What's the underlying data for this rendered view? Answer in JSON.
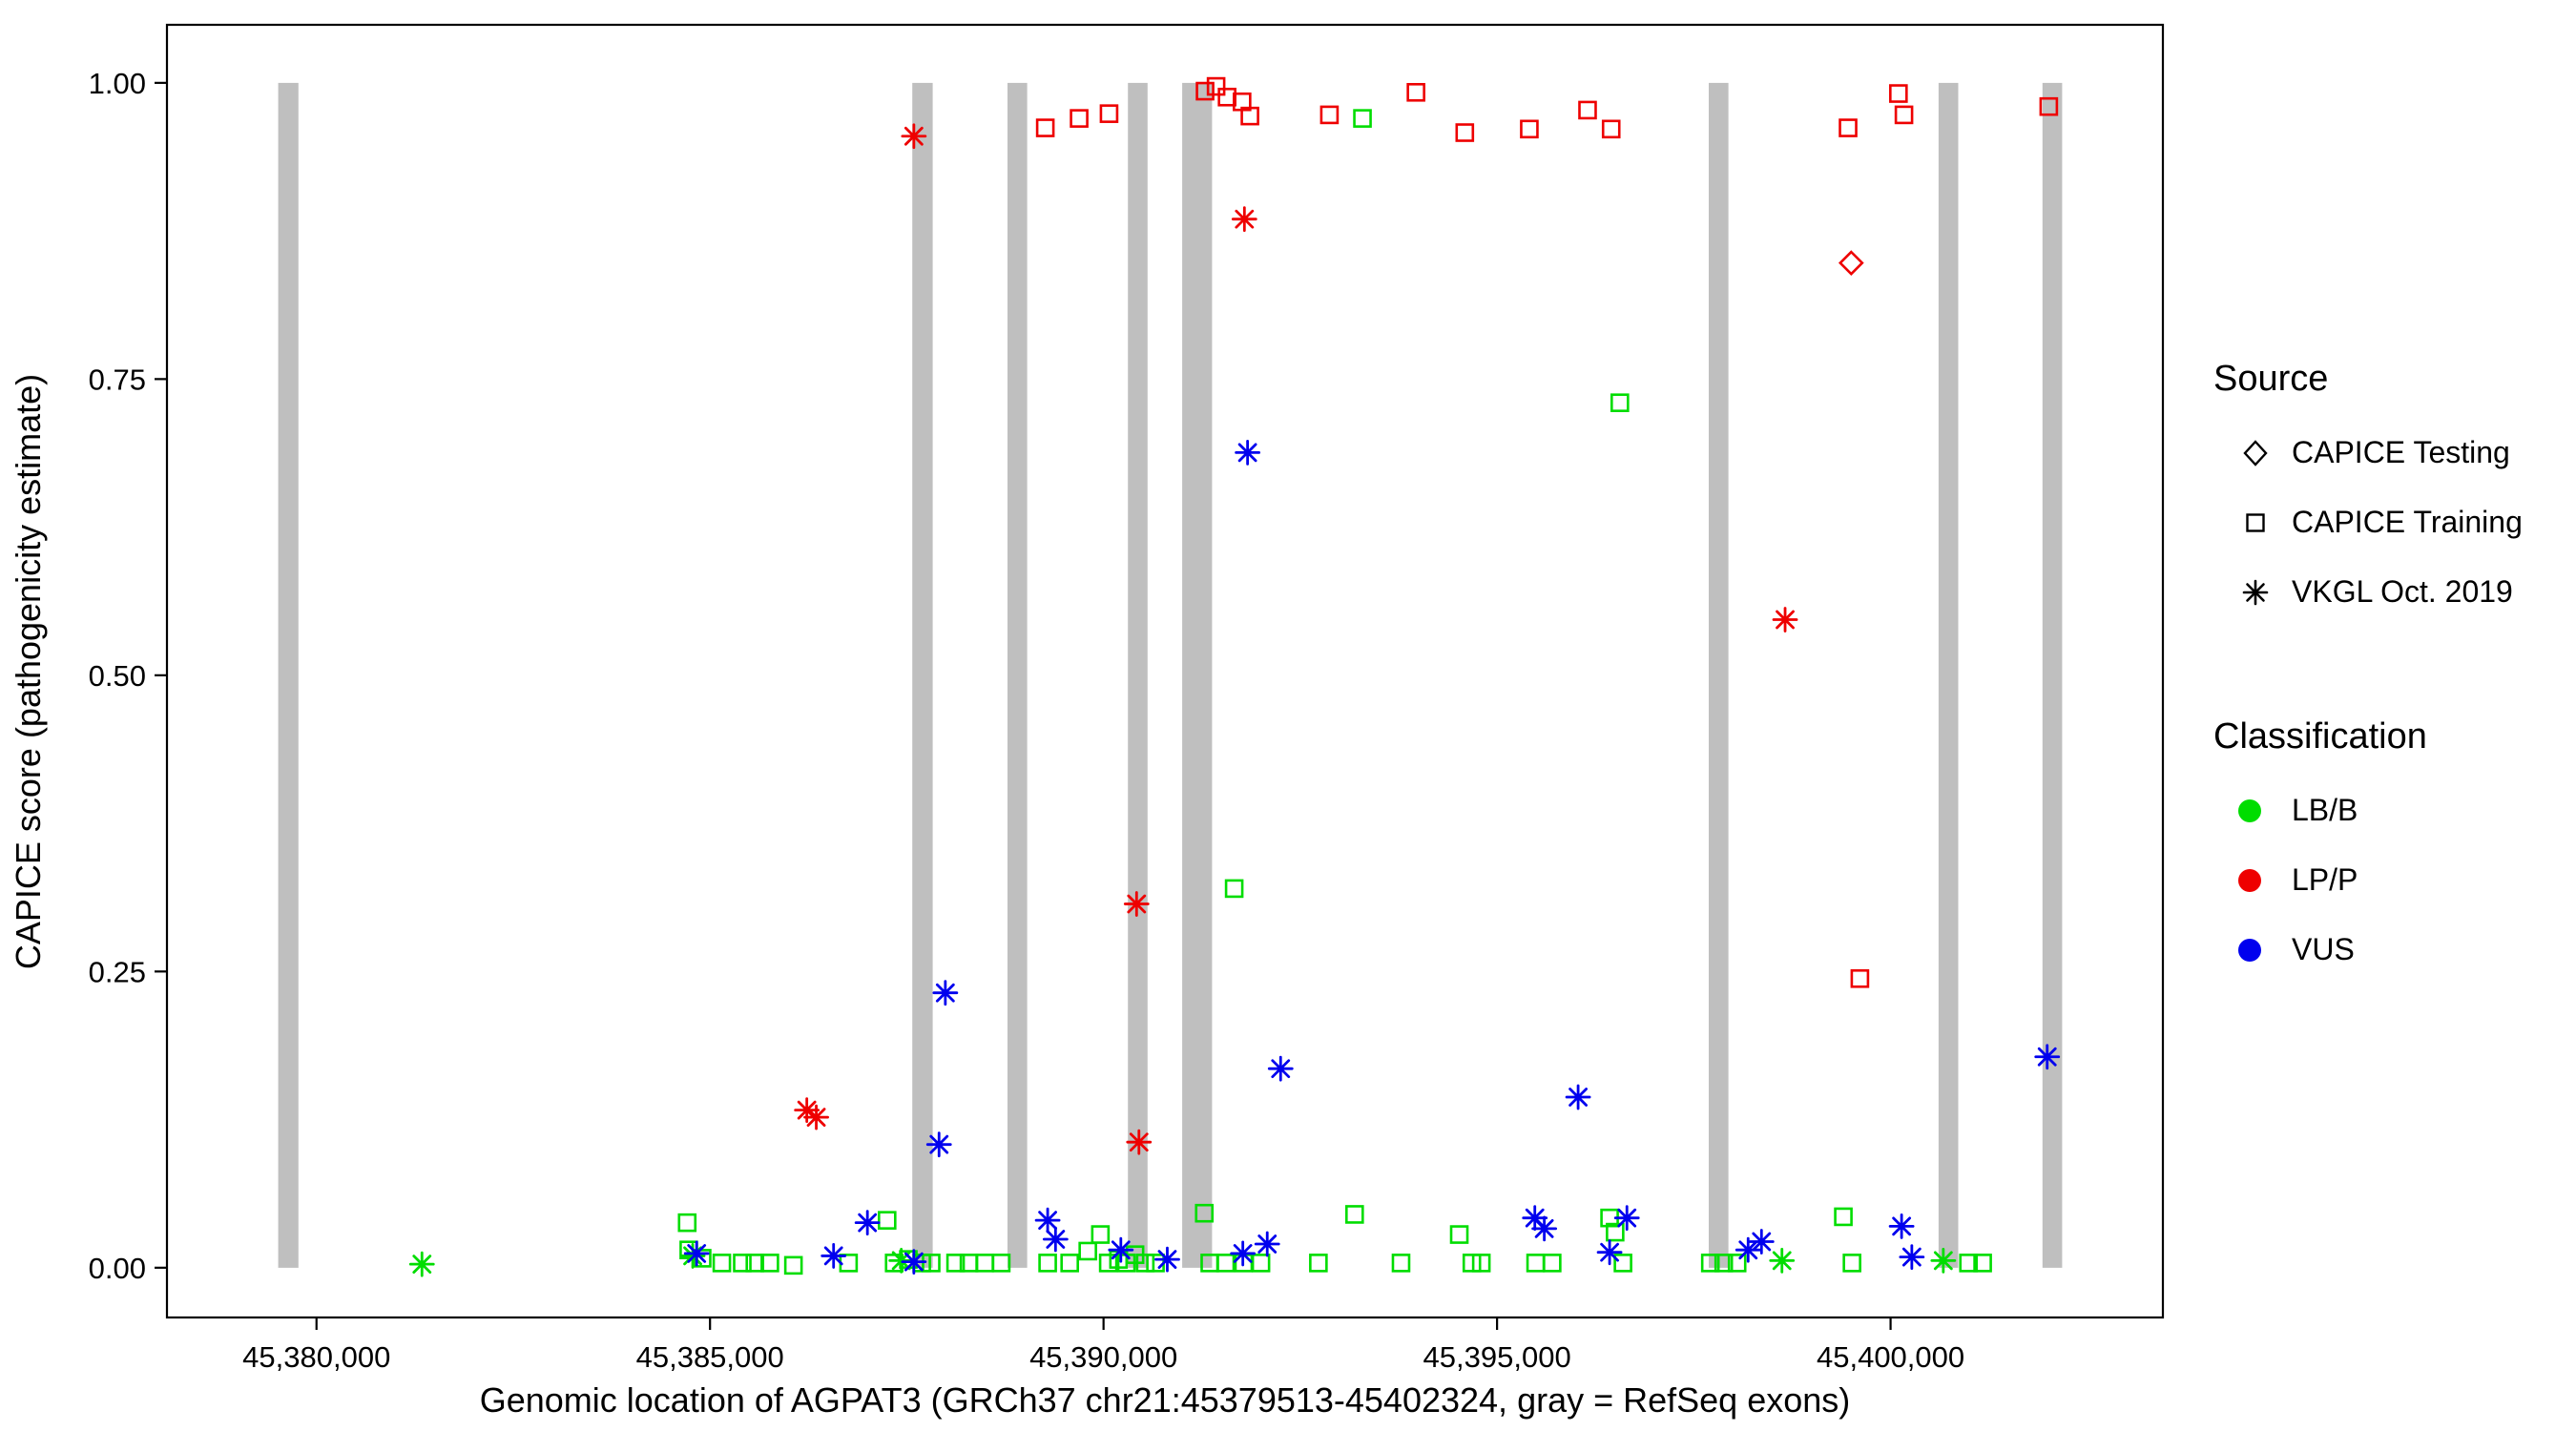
{
  "figure": {
    "x_axis_title": "Genomic location of AGPAT3 (GRCh37 chr21:45379513-45402324, gray = RefSeq exons)",
    "y_axis_title": "CAPICE score (pathogenicity estimate)"
  },
  "legend": {
    "source": {
      "title": "Source",
      "items": [
        {
          "label": "CAPICE Testing",
          "marker": "diamond"
        },
        {
          "label": "CAPICE Training",
          "marker": "square"
        },
        {
          "label": "VKGL Oct. 2019",
          "marker": "asterisk"
        }
      ]
    },
    "classification": {
      "title": "Classification",
      "items": [
        {
          "label": "LB/B",
          "color": "#00dd00"
        },
        {
          "label": "LP/P",
          "color": "#ee0000"
        },
        {
          "label": "VUS",
          "color": "#0000ee"
        }
      ]
    }
  },
  "chart_data": {
    "type": "scatter",
    "title": "",
    "xlabel": "Genomic location of AGPAT3 (GRCh37 chr21:45379513-45402324, gray = RefSeq exons)",
    "ylabel": "CAPICE score (pathogenicity estimate)",
    "legend_position": "right",
    "grid": false,
    "xlim": [
      45378100,
      45403460
    ],
    "ylim": [
      -0.042,
      1.049
    ],
    "x_ticks": [
      {
        "value": 45380000,
        "label": "45,380,000"
      },
      {
        "value": 45385000,
        "label": "45,385,000"
      },
      {
        "value": 45390000,
        "label": "45,390,000"
      },
      {
        "value": 45395000,
        "label": "45,395,000"
      },
      {
        "value": 45400000,
        "label": "45,400,000"
      }
    ],
    "y_ticks": [
      {
        "value": 0.0,
        "label": "0.00"
      },
      {
        "value": 0.25,
        "label": "0.25"
      },
      {
        "value": 0.5,
        "label": "0.50"
      },
      {
        "value": 0.75,
        "label": "0.75"
      },
      {
        "value": 1.0,
        "label": "1.00"
      }
    ],
    "exon_color": "#bfbfbf",
    "colors": {
      "LB/B": "#00dd00",
      "LP/P": "#ee0000",
      "VUS": "#0000ee"
    },
    "marker_by_source": {
      "testing": "diamond",
      "training": "square",
      "vkgl": "asterisk"
    },
    "exons": [
      [
        45379513,
        45379770
      ],
      [
        45387570,
        45387830
      ],
      [
        45388780,
        45389030
      ],
      [
        45390310,
        45390560
      ],
      [
        45391000,
        45391380
      ],
      [
        45397690,
        45397940
      ],
      [
        45400610,
        45400860
      ],
      [
        45401930,
        45402180
      ]
    ],
    "point_format": [
      "genomic_position",
      "capice_score",
      "source",
      "classification"
    ],
    "points": [
      [
        45389260,
        0.962,
        "training",
        "LP/P"
      ],
      [
        45389690,
        0.97,
        "training",
        "LP/P"
      ],
      [
        45390070,
        0.974,
        "training",
        "LP/P"
      ],
      [
        45391290,
        0.993,
        "training",
        "LP/P"
      ],
      [
        45391430,
        0.997,
        "training",
        "LP/P"
      ],
      [
        45391570,
        0.988,
        "training",
        "LP/P"
      ],
      [
        45391760,
        0.984,
        "training",
        "LP/P"
      ],
      [
        45391860,
        0.972,
        "training",
        "LP/P"
      ],
      [
        45392870,
        0.973,
        "training",
        "LP/P"
      ],
      [
        45393970,
        0.992,
        "training",
        "LP/P"
      ],
      [
        45394590,
        0.958,
        "training",
        "LP/P"
      ],
      [
        45395410,
        0.961,
        "training",
        "LP/P"
      ],
      [
        45396150,
        0.977,
        "training",
        "LP/P"
      ],
      [
        45396450,
        0.961,
        "training",
        "LP/P"
      ],
      [
        45399460,
        0.962,
        "training",
        "LP/P"
      ],
      [
        45399610,
        0.244,
        "training",
        "LP/P"
      ],
      [
        45400100,
        0.991,
        "training",
        "LP/P"
      ],
      [
        45400170,
        0.973,
        "training",
        "LP/P"
      ],
      [
        45402010,
        0.98,
        "training",
        "LP/P"
      ],
      [
        45399500,
        0.848,
        "testing",
        "LP/P"
      ],
      [
        45387590,
        0.955,
        "vkgl",
        "LP/P"
      ],
      [
        45391790,
        0.885,
        "vkgl",
        "LP/P"
      ],
      [
        45386230,
        0.133,
        "vkgl",
        "LP/P"
      ],
      [
        45386350,
        0.127,
        "vkgl",
        "LP/P"
      ],
      [
        45390420,
        0.307,
        "vkgl",
        "LP/P"
      ],
      [
        45390450,
        0.106,
        "vkgl",
        "LP/P"
      ],
      [
        45398660,
        0.547,
        "vkgl",
        "LP/P"
      ],
      [
        45393290,
        0.97,
        "training",
        "LB/B"
      ],
      [
        45396560,
        0.73,
        "training",
        "LB/B"
      ],
      [
        45391660,
        0.32,
        "training",
        "LB/B"
      ],
      [
        45391280,
        0.046,
        "training",
        "LB/B"
      ],
      [
        45393190,
        0.045,
        "training",
        "LB/B"
      ],
      [
        45384710,
        0.038,
        "training",
        "LB/B"
      ],
      [
        45387250,
        0.04,
        "training",
        "LB/B"
      ],
      [
        45389960,
        0.028,
        "training",
        "LB/B"
      ],
      [
        45394520,
        0.028,
        "training",
        "LB/B"
      ],
      [
        45396430,
        0.042,
        "training",
        "LB/B"
      ],
      [
        45396500,
        0.03,
        "training",
        "LB/B"
      ],
      [
        45399400,
        0.043,
        "training",
        "LB/B"
      ],
      [
        45384730,
        0.015,
        "training",
        "LB/B"
      ],
      [
        45384900,
        0.008,
        "training",
        "LB/B"
      ],
      [
        45385150,
        0.004,
        "training",
        "LB/B"
      ],
      [
        45385410,
        0.004,
        "training",
        "LB/B"
      ],
      [
        45385570,
        0.004,
        "training",
        "LB/B"
      ],
      [
        45385760,
        0.004,
        "training",
        "LB/B"
      ],
      [
        45386060,
        0.002,
        "training",
        "LB/B"
      ],
      [
        45386760,
        0.004,
        "training",
        "LB/B"
      ],
      [
        45387340,
        0.004,
        "training",
        "LB/B"
      ],
      [
        45387520,
        0.007,
        "training",
        "LB/B"
      ],
      [
        45387690,
        0.004,
        "training",
        "LB/B"
      ],
      [
        45387810,
        0.004,
        "training",
        "LB/B"
      ],
      [
        45388120,
        0.004,
        "training",
        "LB/B"
      ],
      [
        45388290,
        0.004,
        "training",
        "LB/B"
      ],
      [
        45388490,
        0.004,
        "training",
        "LB/B"
      ],
      [
        45388700,
        0.004,
        "training",
        "LB/B"
      ],
      [
        45389290,
        0.004,
        "training",
        "LB/B"
      ],
      [
        45389570,
        0.004,
        "training",
        "LB/B"
      ],
      [
        45389800,
        0.014,
        "training",
        "LB/B"
      ],
      [
        45390060,
        0.004,
        "training",
        "LB/B"
      ],
      [
        45390190,
        0.007,
        "training",
        "LB/B"
      ],
      [
        45390290,
        0.004,
        "training",
        "LB/B"
      ],
      [
        45390400,
        0.011,
        "training",
        "LB/B"
      ],
      [
        45390530,
        0.004,
        "training",
        "LB/B"
      ],
      [
        45390660,
        0.004,
        "training",
        "LB/B"
      ],
      [
        45391350,
        0.004,
        "training",
        "LB/B"
      ],
      [
        45391550,
        0.004,
        "training",
        "LB/B"
      ],
      [
        45391780,
        0.004,
        "training",
        "LB/B"
      ],
      [
        45392000,
        0.004,
        "training",
        "LB/B"
      ],
      [
        45392730,
        0.004,
        "training",
        "LB/B"
      ],
      [
        45393780,
        0.004,
        "training",
        "LB/B"
      ],
      [
        45394680,
        0.004,
        "training",
        "LB/B"
      ],
      [
        45394800,
        0.004,
        "training",
        "LB/B"
      ],
      [
        45395490,
        0.004,
        "training",
        "LB/B"
      ],
      [
        45395700,
        0.004,
        "training",
        "LB/B"
      ],
      [
        45396600,
        0.004,
        "training",
        "LB/B"
      ],
      [
        45397710,
        0.004,
        "training",
        "LB/B"
      ],
      [
        45397880,
        0.004,
        "training",
        "LB/B"
      ],
      [
        45398050,
        0.004,
        "training",
        "LB/B"
      ],
      [
        45399510,
        0.004,
        "training",
        "LB/B"
      ],
      [
        45400990,
        0.004,
        "training",
        "LB/B"
      ],
      [
        45401170,
        0.004,
        "training",
        "LB/B"
      ],
      [
        45381340,
        0.003,
        "vkgl",
        "LB/B"
      ],
      [
        45384780,
        0.01,
        "vkgl",
        "LB/B"
      ],
      [
        45387430,
        0.006,
        "vkgl",
        "LB/B"
      ],
      [
        45398620,
        0.006,
        "vkgl",
        "LB/B"
      ],
      [
        45400670,
        0.006,
        "vkgl",
        "LB/B"
      ],
      [
        45387990,
        0.232,
        "vkgl",
        "VUS"
      ],
      [
        45387910,
        0.104,
        "vkgl",
        "VUS"
      ],
      [
        45391830,
        0.688,
        "vkgl",
        "VUS"
      ],
      [
        45392250,
        0.168,
        "vkgl",
        "VUS"
      ],
      [
        45396030,
        0.144,
        "vkgl",
        "VUS"
      ],
      [
        45401990,
        0.178,
        "vkgl",
        "VUS"
      ],
      [
        45387000,
        0.038,
        "vkgl",
        "VUS"
      ],
      [
        45389290,
        0.04,
        "vkgl",
        "VUS"
      ],
      [
        45389390,
        0.024,
        "vkgl",
        "VUS"
      ],
      [
        45384830,
        0.012,
        "vkgl",
        "VUS"
      ],
      [
        45386570,
        0.01,
        "vkgl",
        "VUS"
      ],
      [
        45387590,
        0.005,
        "vkgl",
        "VUS"
      ],
      [
        45390220,
        0.015,
        "vkgl",
        "VUS"
      ],
      [
        45390810,
        0.007,
        "vkgl",
        "VUS"
      ],
      [
        45391770,
        0.012,
        "vkgl",
        "VUS"
      ],
      [
        45392080,
        0.02,
        "vkgl",
        "VUS"
      ],
      [
        45395480,
        0.042,
        "vkgl",
        "VUS"
      ],
      [
        45395600,
        0.033,
        "vkgl",
        "VUS"
      ],
      [
        45396430,
        0.013,
        "vkgl",
        "VUS"
      ],
      [
        45396650,
        0.042,
        "vkgl",
        "VUS"
      ],
      [
        45398190,
        0.015,
        "vkgl",
        "VUS"
      ],
      [
        45398360,
        0.022,
        "vkgl",
        "VUS"
      ],
      [
        45400140,
        0.035,
        "vkgl",
        "VUS"
      ],
      [
        45400270,
        0.009,
        "vkgl",
        "VUS"
      ]
    ]
  }
}
